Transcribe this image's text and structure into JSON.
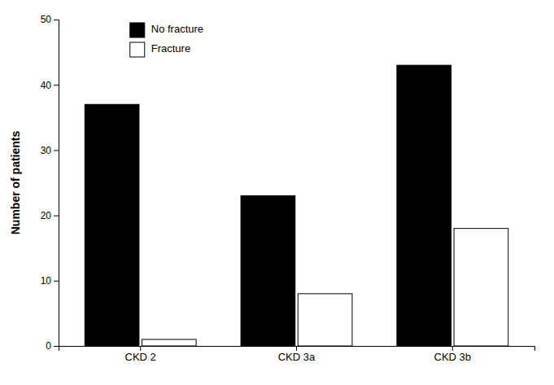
{
  "chart_data": {
    "type": "bar",
    "categories": [
      "CKD 2",
      "CKD 3a",
      "CKD 3b"
    ],
    "series": [
      {
        "name": "No fracture",
        "color": "#000000",
        "values": [
          37,
          23,
          43
        ]
      },
      {
        "name": "Fracture",
        "color": "#ffffff",
        "values": [
          1,
          8,
          18
        ]
      }
    ],
    "ylabel": "Number of patients",
    "ylim": [
      0,
      50
    ],
    "yticks": [
      0,
      10,
      20,
      30,
      40,
      50
    ],
    "grid": false,
    "legend": "upper left"
  }
}
